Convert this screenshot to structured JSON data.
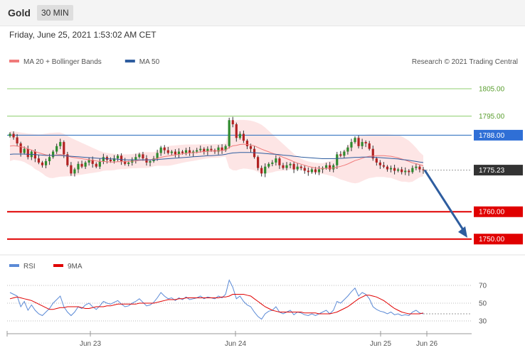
{
  "header": {
    "title": "Gold",
    "interval": "30 MIN",
    "datetime": "Friday, June 25, 2021 1:53:02 AM CET"
  },
  "credit": "Research © 2021 Trading Central",
  "colors": {
    "bollinger": "#f07a7a",
    "bollinger_fill": "#fde0e0",
    "ma50": "#2e5d9f",
    "up_candle": "#2e8b2e",
    "down_candle": "#b22222",
    "resistance": "#8fcf6f",
    "pivot": "#3a78c2",
    "support": "#e00000",
    "current": "#333333",
    "arrow": "#2e5d9f",
    "rsi": "#5b8ad6",
    "rsi_ma": "#e00000"
  },
  "chart_data": [
    {
      "type": "candlestick",
      "legend": [
        {
          "label": "MA 20 + Bollinger Bands",
          "color": "#f07a7a"
        },
        {
          "label": "MA 50",
          "color": "#2e5d9f"
        }
      ],
      "ylim": [
        1745,
        1812
      ],
      "x_ticks": [
        "Jun 23",
        "Jun 24",
        "Jun 25",
        "Jun 26"
      ],
      "levels": [
        {
          "value": 1805.0,
          "label": "1805.00",
          "kind": "resistance"
        },
        {
          "value": 1795.0,
          "label": "1795.00",
          "kind": "resistance"
        },
        {
          "value": 1788.0,
          "label": "1788.00",
          "kind": "pivot"
        },
        {
          "value": 1775.23,
          "label": "1775.23",
          "kind": "current"
        },
        {
          "value": 1760.0,
          "label": "1760.00",
          "kind": "support"
        },
        {
          "value": 1750.0,
          "label": "1750.00",
          "kind": "support"
        }
      ],
      "arrow": {
        "from": 1775.23,
        "to": 1750.0
      },
      "close": [
        1788.5,
        1787.2,
        1785.0,
        1781.5,
        1783.0,
        1780.0,
        1782.0,
        1779.5,
        1778.0,
        1777.0,
        1778.5,
        1780.0,
        1782.0,
        1784.0,
        1785.5,
        1781.0,
        1777.0,
        1774.0,
        1775.5,
        1777.5,
        1776.5,
        1778.0,
        1779.0,
        1777.5,
        1776.5,
        1778.5,
        1780.0,
        1779.0,
        1778.5,
        1779.5,
        1780.5,
        1778.5,
        1777.5,
        1778.0,
        1779.0,
        1780.0,
        1781.0,
        1779.5,
        1778.0,
        1778.5,
        1779.5,
        1781.5,
        1783.5,
        1782.5,
        1781.5,
        1782.0,
        1781.0,
        1782.0,
        1781.5,
        1782.5,
        1781.5,
        1782.0,
        1782.5,
        1783.0,
        1782.0,
        1783.0,
        1782.5,
        1782.0,
        1783.5,
        1782.5,
        1784.0,
        1793.5,
        1792.0,
        1787.0,
        1788.5,
        1786.0,
        1784.0,
        1783.0,
        1780.0,
        1776.0,
        1774.0,
        1776.5,
        1777.5,
        1778.0,
        1779.5,
        1777.0,
        1776.0,
        1777.0,
        1777.5,
        1775.5,
        1776.5,
        1776.0,
        1775.0,
        1774.5,
        1775.5,
        1774.5,
        1775.5,
        1776.0,
        1777.0,
        1775.5,
        1777.0,
        1781.0,
        1780.5,
        1782.0,
        1783.5,
        1785.5,
        1787.0,
        1784.0,
        1785.5,
        1785.0,
        1783.0,
        1779.5,
        1778.0,
        1777.0,
        1776.5,
        1775.5,
        1776.0,
        1775.0,
        1775.5,
        1774.5,
        1775.0,
        1774.5,
        1776.0,
        1776.5,
        1775.5,
        1775.23
      ],
      "ma20": [
        1784.0,
        1784.2,
        1784.0,
        1783.8,
        1783.5,
        1783.0,
        1782.6,
        1782.0,
        1781.6,
        1781.2,
        1780.8,
        1780.6,
        1780.6,
        1780.8,
        1780.9,
        1780.7,
        1780.4,
        1780.0,
        1779.8,
        1779.6,
        1779.4,
        1779.2,
        1779.0,
        1778.8,
        1778.6,
        1778.4,
        1778.4,
        1778.3,
        1778.2,
        1778.2,
        1778.3,
        1778.3,
        1778.3,
        1778.4,
        1778.5,
        1778.6,
        1778.8,
        1778.9,
        1778.9,
        1779.0,
        1779.2,
        1779.5,
        1779.9,
        1780.2,
        1780.4,
        1780.6,
        1780.8,
        1781.0,
        1781.2,
        1781.4,
        1781.5,
        1781.6,
        1781.7,
        1781.9,
        1782.0,
        1782.1,
        1782.2,
        1782.2,
        1782.3,
        1782.4,
        1782.6,
        1783.5,
        1784.1,
        1784.3,
        1784.6,
        1784.7,
        1784.6,
        1784.4,
        1784.1,
        1783.5,
        1782.9,
        1782.4,
        1781.9,
        1781.4,
        1781.0,
        1780.5,
        1779.9,
        1779.4,
        1778.9,
        1778.3,
        1777.8,
        1777.4,
        1777.0,
        1776.6,
        1776.3,
        1776.0,
        1775.9,
        1775.8,
        1775.9,
        1775.9,
        1776.0,
        1776.3,
        1776.6,
        1777.0,
        1777.5,
        1778.1,
        1778.7,
        1779.1,
        1779.6,
        1780.0,
        1780.3,
        1780.4,
        1780.5,
        1780.5,
        1780.5,
        1780.4,
        1780.3,
        1780.0,
        1779.7,
        1779.3,
        1778.9,
        1778.4,
        1777.9,
        1777.6,
        1777.2,
        1776.8
      ],
      "bb_upper": [
        1789.5,
        1789.4,
        1789.2,
        1789.0,
        1788.8,
        1788.6,
        1788.5,
        1788.4,
        1788.3,
        1788.4,
        1788.6,
        1788.8,
        1788.9,
        1789.0,
        1789.0,
        1788.5,
        1787.8,
        1787.0,
        1786.4,
        1785.8,
        1785.2,
        1784.6,
        1784.0,
        1783.4,
        1782.8,
        1782.2,
        1781.8,
        1781.5,
        1781.3,
        1781.2,
        1781.1,
        1781.0,
        1781.0,
        1781.0,
        1781.1,
        1781.3,
        1781.6,
        1781.8,
        1781.8,
        1781.8,
        1781.8,
        1782.2,
        1783.0,
        1783.6,
        1784.0,
        1784.2,
        1784.3,
        1784.4,
        1784.5,
        1784.6,
        1784.6,
        1784.6,
        1784.6,
        1784.7,
        1784.7,
        1784.7,
        1784.7,
        1784.7,
        1784.8,
        1784.8,
        1785.0,
        1791.0,
        1793.0,
        1793.5,
        1793.6,
        1793.6,
        1793.5,
        1793.3,
        1793.0,
        1792.5,
        1791.8,
        1790.8,
        1789.6,
        1788.4,
        1787.2,
        1786.0,
        1784.8,
        1783.6,
        1782.4,
        1781.2,
        1780.2,
        1779.4,
        1778.8,
        1778.4,
        1778.1,
        1777.9,
        1777.8,
        1777.8,
        1778.2,
        1778.6,
        1779.0,
        1780.2,
        1781.4,
        1782.6,
        1784.0,
        1785.6,
        1787.0,
        1787.6,
        1788.0,
        1788.2,
        1788.3,
        1788.3,
        1788.3,
        1788.3,
        1788.3,
        1788.3,
        1788.2,
        1788.1,
        1788.0,
        1787.6,
        1786.8,
        1786.0,
        1784.8,
        1783.4,
        1781.8,
        1780.6
      ],
      "bb_lower": [
        1778.5,
        1779.0,
        1778.8,
        1778.6,
        1778.2,
        1777.4,
        1776.7,
        1775.6,
        1774.9,
        1774.0,
        1773.0,
        1772.4,
        1772.3,
        1772.6,
        1772.8,
        1772.9,
        1773.0,
        1773.0,
        1773.2,
        1773.4,
        1773.6,
        1773.8,
        1774.0,
        1774.2,
        1774.4,
        1774.6,
        1775.0,
        1775.1,
        1775.1,
        1775.2,
        1775.5,
        1775.6,
        1775.6,
        1775.8,
        1775.9,
        1775.9,
        1776.0,
        1776.0,
        1776.0,
        1776.2,
        1776.6,
        1776.8,
        1776.8,
        1776.8,
        1776.8,
        1777.0,
        1777.3,
        1777.6,
        1777.9,
        1778.2,
        1778.4,
        1778.6,
        1778.8,
        1779.1,
        1779.3,
        1779.5,
        1779.7,
        1779.7,
        1779.8,
        1780.0,
        1780.2,
        1776.0,
        1775.2,
        1775.1,
        1775.6,
        1775.8,
        1775.7,
        1775.5,
        1775.2,
        1774.5,
        1774.0,
        1774.0,
        1774.2,
        1774.4,
        1774.8,
        1775.0,
        1775.0,
        1775.2,
        1775.4,
        1775.4,
        1775.4,
        1775.4,
        1775.2,
        1774.8,
        1774.5,
        1774.1,
        1774.0,
        1773.8,
        1773.6,
        1773.2,
        1773.0,
        1772.4,
        1771.8,
        1771.4,
        1771.0,
        1770.6,
        1770.4,
        1770.6,
        1771.2,
        1771.8,
        1772.3,
        1772.5,
        1772.7,
        1772.7,
        1772.7,
        1772.5,
        1772.4,
        1771.9,
        1771.4,
        1771.0,
        1771.0,
        1770.8,
        1771.0,
        1771.8,
        1772.6,
        1773.0
      ],
      "ma50": [
        1781.0,
        1781.1,
        1781.1,
        1781.1,
        1781.1,
        1781.0,
        1781.0,
        1780.9,
        1780.8,
        1780.7,
        1780.6,
        1780.6,
        1780.6,
        1780.6,
        1780.6,
        1780.5,
        1780.4,
        1780.3,
        1780.2,
        1780.1,
        1780.0,
        1779.9,
        1779.8,
        1779.7,
        1779.6,
        1779.5,
        1779.5,
        1779.4,
        1779.3,
        1779.3,
        1779.2,
        1779.1,
        1779.0,
        1779.0,
        1779.0,
        1779.0,
        1779.0,
        1779.0,
        1779.0,
        1779.0,
        1779.0,
        1779.1,
        1779.2,
        1779.3,
        1779.4,
        1779.5,
        1779.6,
        1779.7,
        1779.8,
        1779.9,
        1780.0,
        1780.1,
        1780.2,
        1780.3,
        1780.4,
        1780.5,
        1780.5,
        1780.6,
        1780.7,
        1780.8,
        1781.0,
        1781.3,
        1781.5,
        1781.6,
        1781.7,
        1781.7,
        1781.7,
        1781.7,
        1781.6,
        1781.5,
        1781.4,
        1781.3,
        1781.2,
        1781.1,
        1781.0,
        1780.9,
        1780.7,
        1780.6,
        1780.5,
        1780.3,
        1780.2,
        1780.0,
        1779.9,
        1779.8,
        1779.7,
        1779.6,
        1779.5,
        1779.4,
        1779.4,
        1779.4,
        1779.4,
        1779.5,
        1779.5,
        1779.6,
        1779.7,
        1779.8,
        1779.9,
        1779.9,
        1780.0,
        1780.0,
        1780.0,
        1780.0,
        1779.9,
        1779.8,
        1779.7,
        1779.6,
        1779.5,
        1779.4,
        1779.3,
        1779.1,
        1779.0,
        1778.8,
        1778.6,
        1778.4,
        1778.2,
        1778.0
      ]
    },
    {
      "type": "line",
      "legend": [
        {
          "label": "RSI",
          "color": "#5b8ad6"
        },
        {
          "label": "9MA",
          "color": "#e00000"
        }
      ],
      "ylim": [
        22,
        78
      ],
      "y_ticks": [
        30,
        50,
        70
      ],
      "x_ticks": [
        "Jun 23",
        "Jun 24",
        "Jun 25",
        "Jun 26"
      ],
      "series": [
        {
          "name": "RSI",
          "values": [
            62,
            60,
            58,
            46,
            52,
            42,
            48,
            42,
            38,
            36,
            40,
            44,
            50,
            54,
            58,
            46,
            40,
            36,
            40,
            46,
            44,
            48,
            50,
            46,
            43,
            47,
            52,
            50,
            49,
            51,
            53,
            49,
            46,
            47,
            50,
            52,
            55,
            51,
            47,
            48,
            51,
            56,
            62,
            58,
            55,
            56,
            53,
            56,
            54,
            57,
            54,
            55,
            56,
            58,
            55,
            57,
            56,
            55,
            58,
            56,
            60,
            76,
            68,
            55,
            58,
            52,
            48,
            46,
            40,
            35,
            32,
            38,
            41,
            42,
            46,
            40,
            38,
            40,
            42,
            37,
            40,
            39,
            37,
            36,
            38,
            36,
            38,
            40,
            42,
            38,
            42,
            52,
            50,
            54,
            58,
            63,
            67,
            58,
            62,
            60,
            55,
            46,
            43,
            41,
            40,
            38,
            40,
            37,
            38,
            36,
            37,
            36,
            40,
            42,
            39,
            38
          ]
        },
        {
          "name": "9MA",
          "values": [
            55,
            56,
            57,
            56,
            55,
            54,
            53,
            51,
            49,
            47,
            45,
            43,
            43,
            44,
            45,
            45,
            46,
            46,
            46,
            46,
            45,
            44,
            44,
            45,
            46,
            46,
            46,
            47,
            47,
            48,
            49,
            49,
            49,
            49,
            49,
            49,
            50,
            50,
            50,
            50,
            50,
            51,
            52,
            53,
            54,
            54,
            54,
            55,
            55,
            56,
            56,
            56,
            56,
            56,
            56,
            56,
            56,
            56,
            56,
            57,
            57,
            58,
            60,
            60,
            60,
            60,
            59,
            58,
            55,
            52,
            49,
            46,
            44,
            42,
            41,
            40,
            40,
            40,
            40,
            40,
            40,
            40,
            39,
            39,
            39,
            39,
            38,
            38,
            38,
            38,
            39,
            40,
            42,
            44,
            46,
            49,
            52,
            55,
            57,
            59,
            59,
            58,
            57,
            55,
            53,
            50,
            47,
            44,
            42,
            40,
            39,
            38,
            38,
            38,
            38,
            39
          ]
        }
      ]
    }
  ]
}
